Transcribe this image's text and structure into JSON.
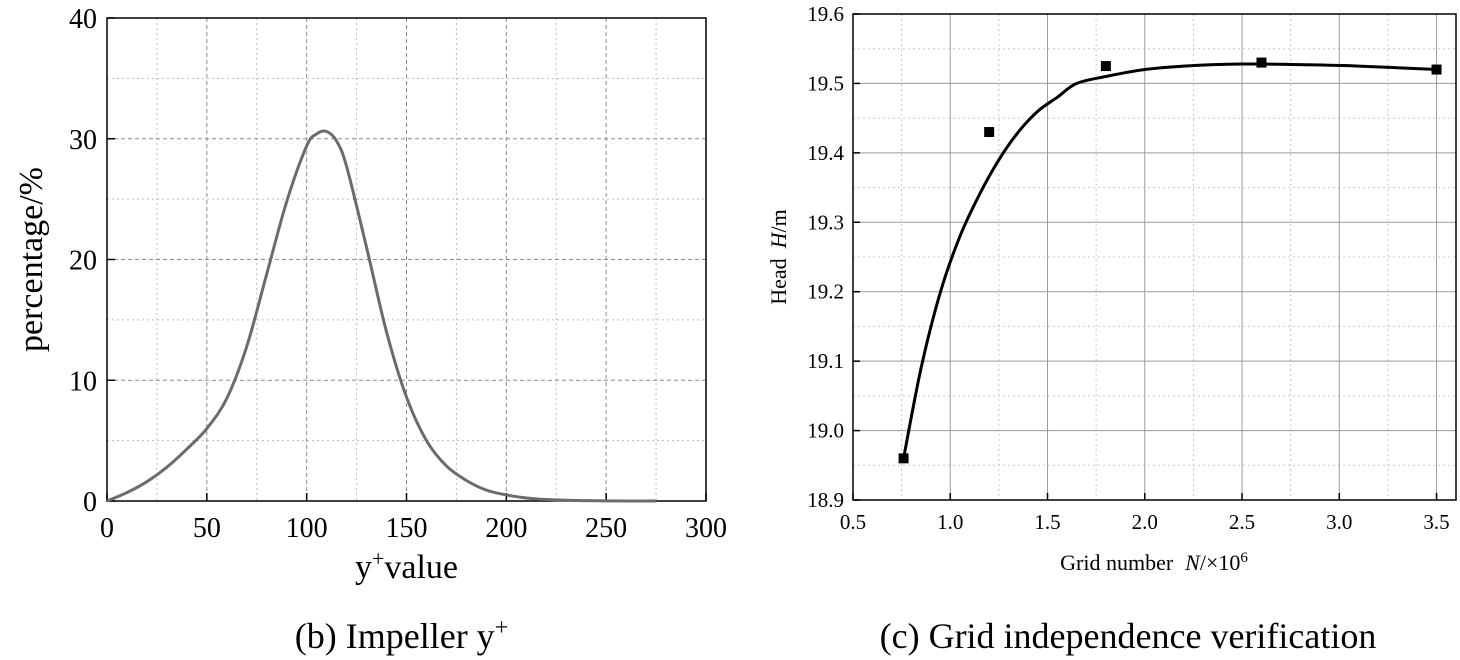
{
  "chart_data": [
    {
      "type": "line",
      "title": "",
      "caption": "(b) Impeller y",
      "caption_sup": "+",
      "xlabel": "value",
      "xlabel_prefix": "y",
      "xlabel_sup": "+",
      "ylabel": "percentage/%",
      "xlim": [
        0,
        300
      ],
      "ylim": [
        0,
        40
      ],
      "xticks": [
        "0",
        "50",
        "100",
        "150",
        "200",
        "250",
        "300"
      ],
      "yticks": [
        "0",
        "10",
        "20",
        "30",
        "40"
      ],
      "grid": true,
      "line_color": "#6b6b6b",
      "series": [
        {
          "x": [
            0,
            10,
            20,
            30,
            40,
            50,
            60,
            70,
            80,
            90,
            100,
            105,
            110,
            115,
            120,
            130,
            140,
            150,
            160,
            170,
            180,
            190,
            200,
            210,
            220,
            230,
            240,
            250,
            260,
            270,
            275
          ],
          "y": [
            0,
            0.7,
            1.6,
            2.8,
            4.3,
            6.0,
            8.5,
            12.8,
            18.8,
            24.8,
            29.4,
            30.4,
            30.6,
            29.8,
            27.7,
            21.0,
            14.0,
            8.6,
            5.0,
            2.9,
            1.7,
            0.9,
            0.5,
            0.25,
            0.12,
            0.06,
            0.03,
            0.01,
            0.0,
            0.0,
            0.0
          ]
        }
      ]
    },
    {
      "type": "scatter",
      "title": "",
      "caption": "(c) Grid independence verification",
      "xlabel_prefix": "Grid number",
      "xlabel_var": "N",
      "xlabel_suffix": "/×10",
      "xlabel_sup": "6",
      "ylabel_prefix": "Head",
      "ylabel_var": "H",
      "ylabel_suffix": "/m",
      "xlim": [
        0.5,
        3.6
      ],
      "ylim": [
        18.9,
        19.6
      ],
      "xticks": [
        "0.5",
        "1.0",
        "1.5",
        "2.0",
        "2.5",
        "3.0",
        "3.5"
      ],
      "yticks": [
        "18.9",
        "19.0",
        "19.1",
        "19.2",
        "19.3",
        "19.4",
        "19.5",
        "19.6"
      ],
      "grid": true,
      "marker_color": "#000000",
      "points": {
        "x": [
          0.76,
          1.2,
          1.8,
          2.6,
          3.5
        ],
        "y": [
          18.96,
          19.43,
          19.525,
          19.53,
          19.52
        ]
      },
      "fit": {
        "x": [
          0.76,
          0.85,
          0.95,
          1.05,
          1.15,
          1.25,
          1.35,
          1.45,
          1.55,
          1.65,
          1.8,
          2.0,
          2.2,
          2.5,
          2.8,
          3.1,
          3.5
        ],
        "y": [
          18.96,
          19.09,
          19.2,
          19.28,
          19.34,
          19.39,
          19.43,
          19.46,
          19.48,
          19.5,
          19.51,
          19.52,
          19.525,
          19.528,
          19.527,
          19.525,
          19.52
        ]
      }
    }
  ]
}
